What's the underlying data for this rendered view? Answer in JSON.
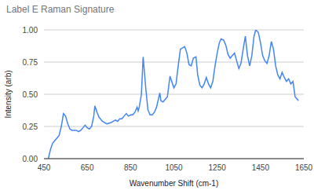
{
  "chart_data": {
    "type": "line",
    "title": "Label E Raman Signature",
    "x_label": "Wavenumber Shift (cm-1)",
    "y_label": "Intensity (arb)",
    "color": "#4285f4",
    "grid": true,
    "xlim": [
      450,
      1650
    ],
    "xticks": [
      450,
      650,
      850,
      1050,
      1250,
      1450,
      1650
    ],
    "ylim": [
      0,
      1
    ],
    "yticks": [
      {
        "value": 0,
        "label": "0.00"
      },
      {
        "value": 0.25,
        "label": "0.25"
      },
      {
        "value": 0.5,
        "label": "0.50"
      },
      {
        "value": 0.75,
        "label": "0.75"
      },
      {
        "value": 1,
        "label": "1.00"
      }
    ],
    "x": [
      470,
      480,
      490,
      500,
      510,
      520,
      530,
      540,
      550,
      560,
      570,
      580,
      590,
      600,
      610,
      620,
      630,
      640,
      650,
      660,
      670,
      680,
      685,
      695,
      705,
      720,
      740,
      760,
      780,
      790,
      800,
      810,
      820,
      830,
      840,
      850,
      860,
      870,
      880,
      885,
      890,
      900,
      908,
      920,
      930,
      940,
      950,
      960,
      970,
      985,
      990,
      1000,
      1010,
      1020,
      1032,
      1050,
      1060,
      1070,
      1080,
      1100,
      1110,
      1120,
      1130,
      1140,
      1152,
      1160,
      1170,
      1180,
      1190,
      1200,
      1210,
      1220,
      1230,
      1240,
      1250,
      1260,
      1268,
      1280,
      1290,
      1300,
      1310,
      1320,
      1330,
      1340,
      1350,
      1360,
      1370,
      1380,
      1390,
      1400,
      1410,
      1420,
      1428,
      1440,
      1450,
      1460,
      1470,
      1480,
      1490,
      1500,
      1510,
      1520,
      1530,
      1540,
      1550,
      1560,
      1570,
      1580,
      1590,
      1600,
      1610,
      1620,
      1625
    ],
    "values": [
      0.0,
      0.07,
      0.12,
      0.14,
      0.16,
      0.18,
      0.25,
      0.35,
      0.33,
      0.27,
      0.23,
      0.22,
      0.22,
      0.22,
      0.21,
      0.22,
      0.24,
      0.26,
      0.24,
      0.23,
      0.25,
      0.33,
      0.41,
      0.36,
      0.32,
      0.29,
      0.27,
      0.28,
      0.3,
      0.29,
      0.31,
      0.31,
      0.33,
      0.35,
      0.33,
      0.34,
      0.34,
      0.36,
      0.4,
      0.37,
      0.4,
      0.5,
      0.79,
      0.55,
      0.38,
      0.34,
      0.34,
      0.36,
      0.4,
      0.51,
      0.45,
      0.44,
      0.46,
      0.48,
      0.64,
      0.55,
      0.58,
      0.72,
      0.85,
      0.87,
      0.82,
      0.73,
      0.72,
      0.78,
      0.79,
      0.65,
      0.57,
      0.55,
      0.58,
      0.63,
      0.58,
      0.55,
      0.6,
      0.72,
      0.82,
      0.9,
      0.93,
      0.92,
      0.88,
      0.81,
      0.78,
      0.8,
      0.82,
      0.76,
      0.7,
      0.74,
      0.85,
      0.95,
      0.8,
      0.72,
      0.8,
      0.95,
      1.0,
      0.98,
      0.9,
      0.8,
      0.76,
      0.74,
      0.8,
      0.91,
      0.85,
      0.72,
      0.65,
      0.62,
      0.67,
      0.63,
      0.6,
      0.62,
      0.58,
      0.6,
      0.48,
      0.46,
      0.45
    ]
  }
}
